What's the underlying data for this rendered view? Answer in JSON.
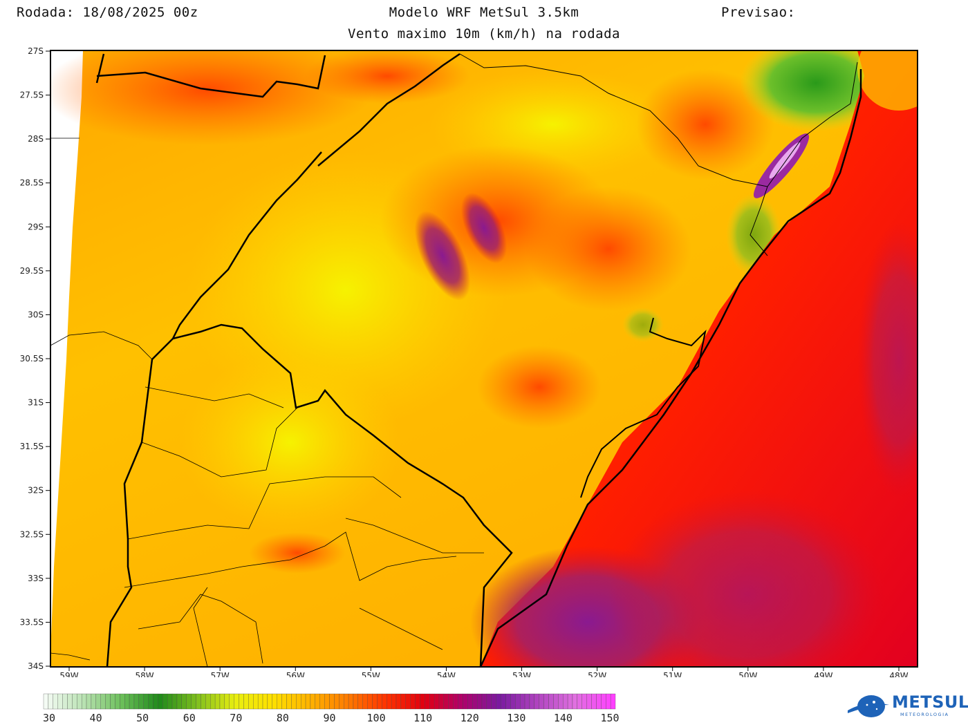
{
  "header": {
    "run_label": "Rodada: 18/08/2025 00z",
    "model_label": "Modelo WRF MetSul 3.5km",
    "forecast_label": "Previsao:",
    "subtitle": "Vento maximo 10m (km/h) na rodada"
  },
  "map": {
    "lat_ticks": [
      "27S",
      "27.5S",
      "28S",
      "28.5S",
      "29S",
      "29.5S",
      "30S",
      "30.5S",
      "31S",
      "31.5S",
      "32S",
      "32.5S",
      "33S",
      "33.5S",
      "34S"
    ],
    "lon_ticks": [
      "59W",
      "58W",
      "57W",
      "56W",
      "55W",
      "54W",
      "53W",
      "52W",
      "51W",
      "50W",
      "49W",
      "48W"
    ]
  },
  "colorbar": {
    "labels": [
      "30",
      "40",
      "50",
      "60",
      "70",
      "80",
      "90",
      "100",
      "110",
      "120",
      "130",
      "140",
      "150"
    ],
    "colors": [
      "#f4fbf4",
      "#b9e2b2",
      "#6cbf5a",
      "#1f8a1a",
      "#7fbf1e",
      "#e8ee10",
      "#ffe000",
      "#ffb200",
      "#ff7a00",
      "#ff3200",
      "#e00010",
      "#b0006a",
      "#7a1aa0",
      "#b044c0",
      "#e070e0",
      "#ff40ff"
    ]
  },
  "logo": {
    "name": "METSUL",
    "sub": "METEOROLOGIA"
  }
}
